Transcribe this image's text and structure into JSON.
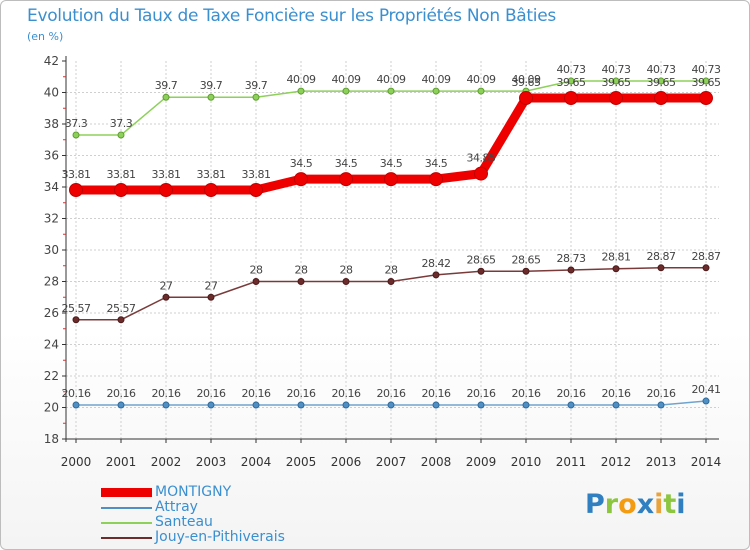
{
  "header": {
    "title": "Evolution du Taux de Taxe Foncière sur les Propriétés Non Bâties",
    "unit": "(en %)"
  },
  "colors": {
    "MONTIGNY": "#ee0000",
    "Attray": "#4f8fc4",
    "Santeau": "#8ed15a",
    "Jouy-en-Pithiverais": "#6d2c2c"
  },
  "logo": {
    "text": "Proxiti"
  },
  "chart_data": {
    "type": "line",
    "title": "Evolution du Taux de Taxe Foncière sur les Propriétés Non Bâties",
    "ylabel": "(en %)",
    "xlabel": "",
    "ylim": [
      18,
      42
    ],
    "yticks": [
      18,
      20,
      22,
      24,
      26,
      28,
      30,
      32,
      34,
      36,
      38,
      40,
      42
    ],
    "x": [
      2000,
      2001,
      2002,
      2003,
      2004,
      2005,
      2006,
      2007,
      2008,
      2009,
      2010,
      2011,
      2012,
      2013,
      2014
    ],
    "grid": true,
    "legend": "bottom-left",
    "series": [
      {
        "name": "MONTIGNY",
        "values": [
          33.81,
          33.81,
          33.81,
          33.81,
          33.81,
          34.5,
          34.5,
          34.5,
          34.5,
          34.85,
          39.65,
          39.65,
          39.65,
          39.65,
          39.65
        ],
        "labels": [
          "33.81",
          "33.81",
          "33.81",
          "33.81",
          "33.81",
          "34.5",
          "34.5",
          "34.5",
          "34.5",
          "34.85",
          "39.65",
          "39.65",
          "39.65",
          "39.65",
          "39.65"
        ]
      },
      {
        "name": "Attray",
        "values": [
          20.16,
          20.16,
          20.16,
          20.16,
          20.16,
          20.16,
          20.16,
          20.16,
          20.16,
          20.16,
          20.16,
          20.16,
          20.16,
          20.16,
          20.41
        ],
        "labels": [
          "20.16",
          "20.16",
          "20.16",
          "20.16",
          "20.16",
          "20.16",
          "20.16",
          "20.16",
          "20.16",
          "20.16",
          "20.16",
          "20.16",
          "20.16",
          "20.16",
          "20.41"
        ]
      },
      {
        "name": "Santeau",
        "values": [
          37.3,
          37.3,
          39.7,
          39.7,
          39.7,
          40.09,
          40.09,
          40.09,
          40.09,
          40.09,
          40.09,
          40.73,
          40.73,
          40.73,
          40.73
        ],
        "labels": [
          "37.3",
          "37.3",
          "39.7",
          "39.7",
          "39.7",
          "40.09",
          "40.09",
          "40.09",
          "40.09",
          "40.09",
          "40.09",
          "40.73",
          "40.73",
          "40.73",
          "40.73"
        ]
      },
      {
        "name": "Jouy-en-Pithiverais",
        "values": [
          25.57,
          25.57,
          27,
          27,
          28,
          28,
          28,
          28,
          28.42,
          28.65,
          28.65,
          28.73,
          28.81,
          28.87,
          28.87
        ],
        "labels": [
          "25.57",
          "25.57",
          "27",
          "27",
          "28",
          "28",
          "28",
          "28",
          "28.42",
          "28.65",
          "28.65",
          "28.73",
          "28.81",
          "28.87",
          "28.87"
        ]
      }
    ]
  }
}
